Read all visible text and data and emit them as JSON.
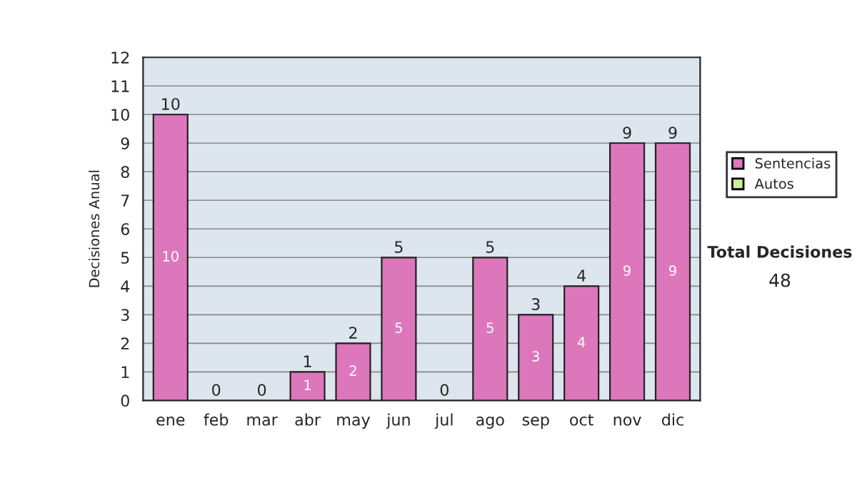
{
  "chart_data": {
    "type": "bar",
    "stacked": true,
    "ylabel": "Decisiones Anual",
    "categories": [
      "ene",
      "feb",
      "mar",
      "abr",
      "may",
      "jun",
      "jul",
      "ago",
      "sep",
      "oct",
      "nov",
      "dic"
    ],
    "series": [
      {
        "name": "Sentencias",
        "color": "#dd77bb",
        "values": [
          10,
          0,
          0,
          1,
          2,
          5,
          0,
          5,
          3,
          4,
          9,
          9
        ],
        "value_labels": [
          "10",
          null,
          null,
          "1",
          "2",
          "5",
          null,
          "5",
          "3",
          "4",
          "9",
          "9"
        ]
      },
      {
        "name": "Autos",
        "color": "#ccee99",
        "values": [
          0,
          0,
          0,
          0,
          0,
          0,
          0,
          0,
          0,
          0,
          0,
          0
        ]
      }
    ],
    "totals": [
      "10",
      "0",
      "0",
      "1",
      "2",
      "5",
      "0",
      "5",
      "3",
      "4",
      "9",
      "9"
    ],
    "ylim": [
      0,
      12
    ],
    "yticks": [
      0,
      1,
      2,
      3,
      4,
      5,
      6,
      7,
      8,
      9,
      10,
      11,
      12
    ],
    "grid": "y",
    "legend": "right",
    "annotations": [
      "Total Decisiones",
      "48"
    ]
  }
}
